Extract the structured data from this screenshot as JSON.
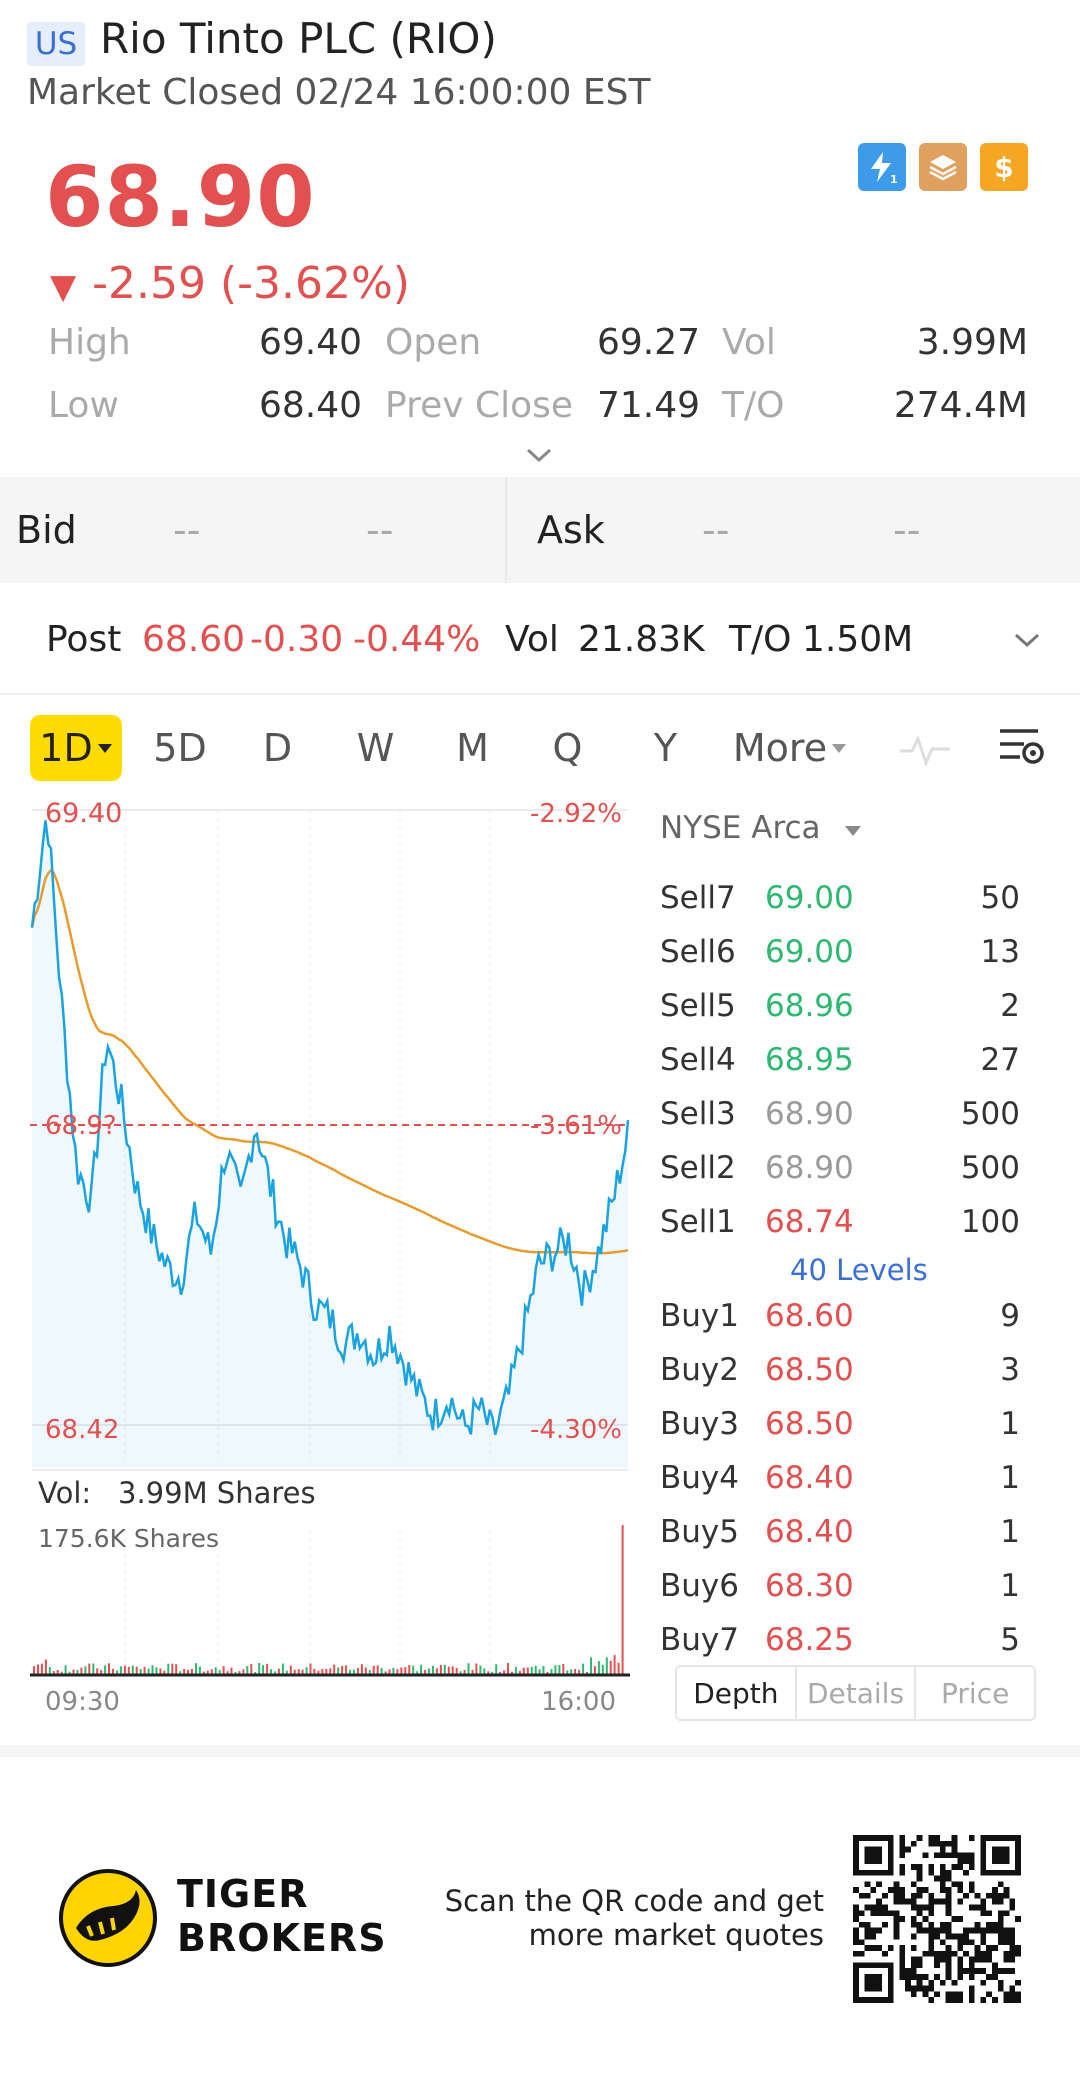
{
  "header": {
    "market_badge": "US",
    "title": "Rio Tinto PLC (RIO)",
    "status": "Market Closed 02/24 16:00:00 EST"
  },
  "quote": {
    "price": "68.90",
    "change": "-2.59 (-3.62%)",
    "stats": {
      "high_label": "High",
      "high": "69.40",
      "low_label": "Low",
      "low": "68.40",
      "open_label": "Open",
      "open": "69.27",
      "prev_close_label": "Prev Close",
      "prev_close": "71.49",
      "vol_label": "Vol",
      "vol": "3.99M",
      "to_label": "T/O",
      "to": "274.4M"
    }
  },
  "bidask": {
    "bid_label": "Bid",
    "bid_price": "--",
    "bid_size": "--",
    "ask_label": "Ask",
    "ask_price": "--",
    "ask_size": "--"
  },
  "post": {
    "label": "Post",
    "price": "68.60",
    "change": "-0.30",
    "pct": "-0.44%",
    "vol_label": "Vol",
    "vol": "21.83K",
    "to_label": "T/O",
    "to": "1.50M"
  },
  "tabs": [
    "1D",
    "5D",
    "D",
    "W",
    "M",
    "Q",
    "Y",
    "More"
  ],
  "chart": {
    "high_label": "69.40",
    "high_pct": "-2.92%",
    "mid_label": "68.9?",
    "mid_pct": "-3.61%",
    "low_label": "68.42",
    "low_pct": "-4.30%",
    "vol_title": "Vol:",
    "vol_value": "3.99M Shares",
    "vol_max": "175.6K Shares",
    "time_start": "09:30",
    "time_end": "16:00",
    "colors": {
      "price_line": "#1aa3e0",
      "avg_line": "#e89b2e",
      "prev_close": "#e25050"
    }
  },
  "chart_data": {
    "type": "line",
    "title": "",
    "xlabel": "",
    "ylabel": "",
    "ylim": [
      68.42,
      69.4
    ],
    "series": [
      {
        "name": "",
        "values": [
          69.22,
          69.4,
          69.1,
          68.85,
          68.8,
          69.05,
          68.95,
          68.82,
          68.75,
          68.7,
          68.68,
          68.78,
          68.72,
          68.88,
          68.8,
          68.92,
          68.82,
          68.74,
          68.7,
          68.64,
          68.62,
          68.58,
          68.6,
          68.56,
          68.6,
          68.55,
          68.5,
          68.47,
          68.5,
          68.45,
          68.48,
          68.44,
          68.5,
          68.6,
          68.7,
          68.72,
          68.74,
          68.66,
          68.72,
          68.8,
          68.9
        ]
      }
    ]
  },
  "orderbook": {
    "exchange": "NYSE Arca",
    "sells": [
      {
        "name": "Sell7",
        "price": "69.00",
        "qty": "50",
        "color": "#2eb872"
      },
      {
        "name": "Sell6",
        "price": "69.00",
        "qty": "13",
        "color": "#2eb872"
      },
      {
        "name": "Sell5",
        "price": "68.96",
        "qty": "2",
        "color": "#2eb872"
      },
      {
        "name": "Sell4",
        "price": "68.95",
        "qty": "27",
        "color": "#2eb872"
      },
      {
        "name": "Sell3",
        "price": "68.90",
        "qty": "500",
        "color": "#9a9a9a"
      },
      {
        "name": "Sell2",
        "price": "68.90",
        "qty": "500",
        "color": "#9a9a9a"
      },
      {
        "name": "Sell1",
        "price": "68.74",
        "qty": "100",
        "color": "#e25050"
      }
    ],
    "levels_label": "40 Levels",
    "buys": [
      {
        "name": "Buy1",
        "price": "68.60",
        "qty": "9",
        "color": "#e25050"
      },
      {
        "name": "Buy2",
        "price": "68.50",
        "qty": "3",
        "color": "#e25050"
      },
      {
        "name": "Buy3",
        "price": "68.50",
        "qty": "1",
        "color": "#e25050"
      },
      {
        "name": "Buy4",
        "price": "68.40",
        "qty": "1",
        "color": "#e25050"
      },
      {
        "name": "Buy5",
        "price": "68.40",
        "qty": "1",
        "color": "#e25050"
      },
      {
        "name": "Buy6",
        "price": "68.30",
        "qty": "1",
        "color": "#e25050"
      },
      {
        "name": "Buy7",
        "price": "68.25",
        "qty": "5",
        "color": "#e25050"
      }
    ],
    "tabs": [
      "Depth",
      "Details",
      "Price"
    ]
  },
  "footer": {
    "brand_line1": "TIGER",
    "brand_line2": "BROKERS",
    "scan_line1": "Scan the QR code and get",
    "scan_line2": "more market quotes"
  }
}
